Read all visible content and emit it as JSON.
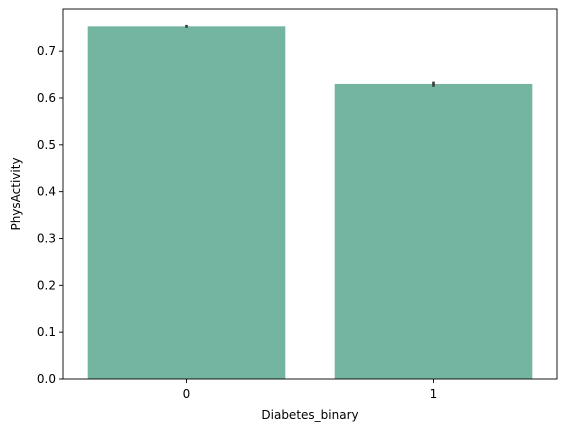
{
  "chart_data": {
    "type": "bar",
    "categories": [
      "0",
      "1"
    ],
    "values": [
      0.753,
      0.63
    ],
    "error_bars": [
      [
        0.75,
        0.756
      ],
      [
        0.624,
        0.635
      ]
    ],
    "xlabel": "Diabetes_binary",
    "ylabel": "PhysActivity",
    "ylim": [
      0,
      0.79
    ],
    "yticks": [
      "0.0",
      "0.1",
      "0.2",
      "0.3",
      "0.4",
      "0.5",
      "0.6",
      "0.7"
    ],
    "grid": false,
    "legend": "none",
    "colors": {
      "bar": "#73b5a0",
      "error_bar": "#3b3b3b",
      "axis": "#000000"
    }
  }
}
